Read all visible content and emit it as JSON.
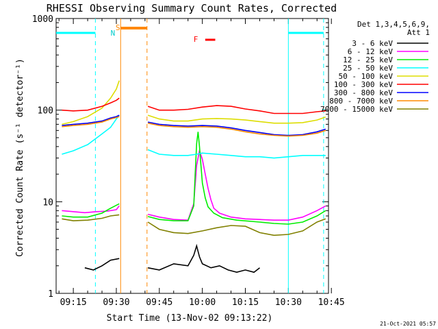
{
  "chart_data": {
    "type": "line",
    "title": "RHESSI Observing Summary Count Rates, Corrected",
    "xlabel": "Start Time (13-Nov-02 09:13:22)",
    "ylabel": "Corrected Count Rate (s⁻¹ detector⁻¹)",
    "yscale": "log",
    "ylim": [
      1,
      1000
    ],
    "xlim_minutes": [
      9.0,
      104.0
    ],
    "x_ticks": [
      "09:15",
      "09:30",
      "09:45",
      "10:00",
      "10:15",
      "10:30",
      "10:45"
    ],
    "x_tick_minutes": [
      15,
      30,
      45,
      60,
      75,
      90,
      105
    ],
    "y_ticks": [
      "1",
      "10",
      "100",
      "1000"
    ],
    "y_tick_values": [
      1,
      10,
      100,
      1000
    ],
    "legend_header": [
      "Det 1,3,4,5,6,9,",
      "Att 1"
    ],
    "series": [
      {
        "name": "3 - 6 keV",
        "color": "#000000",
        "points": [
          [
            19,
            1.9
          ],
          [
            22,
            1.8
          ],
          [
            25,
            2.0
          ],
          [
            28,
            2.3
          ],
          [
            31,
            2.4
          ],
          [
            41,
            1.9
          ],
          [
            45,
            1.8
          ],
          [
            50,
            2.1
          ],
          [
            55,
            2.0
          ],
          [
            57,
            2.6
          ],
          [
            58,
            3.3
          ],
          [
            59,
            2.5
          ],
          [
            60,
            2.1
          ],
          [
            63,
            1.9
          ],
          [
            66,
            2.0
          ],
          [
            69,
            1.8
          ],
          [
            72,
            1.7
          ],
          [
            75,
            1.8
          ],
          [
            78,
            1.7
          ],
          [
            80,
            1.9
          ]
        ]
      },
      {
        "name": "6 - 12 keV",
        "color": "#ff00ff",
        "points": [
          [
            11,
            8.0
          ],
          [
            15,
            7.8
          ],
          [
            19,
            7.6
          ],
          [
            23,
            7.8
          ],
          [
            27,
            7.9
          ],
          [
            30,
            8.2
          ],
          [
            31,
            9.0
          ],
          [
            41,
            7.3
          ],
          [
            45,
            6.8
          ],
          [
            50,
            6.4
          ],
          [
            55,
            6.3
          ],
          [
            57,
            9.5
          ],
          [
            58,
            25
          ],
          [
            59,
            36
          ],
          [
            60,
            29
          ],
          [
            61,
            20
          ],
          [
            62,
            14
          ],
          [
            63,
            10.5
          ],
          [
            64,
            8.5
          ],
          [
            66,
            7.5
          ],
          [
            70,
            6.8
          ],
          [
            75,
            6.5
          ],
          [
            80,
            6.4
          ],
          [
            85,
            6.3
          ],
          [
            90,
            6.3
          ],
          [
            95,
            6.8
          ],
          [
            100,
            8.0
          ],
          [
            103,
            9.0
          ]
        ]
      },
      {
        "name": "12 - 25 keV",
        "color": "#00ee00",
        "points": [
          [
            11,
            7.0
          ],
          [
            15,
            6.8
          ],
          [
            20,
            6.8
          ],
          [
            25,
            7.5
          ],
          [
            28,
            8.5
          ],
          [
            31,
            9.5
          ],
          [
            41,
            6.9
          ],
          [
            45,
            6.4
          ],
          [
            50,
            6.2
          ],
          [
            55,
            6.2
          ],
          [
            57,
            9.0
          ],
          [
            57.5,
            20
          ],
          [
            58,
            43
          ],
          [
            58.5,
            58
          ],
          [
            59,
            40
          ],
          [
            59.5,
            25
          ],
          [
            60,
            16
          ],
          [
            61,
            11
          ],
          [
            62,
            8.8
          ],
          [
            64,
            7.5
          ],
          [
            67,
            6.7
          ],
          [
            72,
            6.3
          ],
          [
            80,
            6.0
          ],
          [
            85,
            5.8
          ],
          [
            90,
            5.7
          ],
          [
            95,
            6.0
          ],
          [
            100,
            7.0
          ],
          [
            103,
            8.0
          ]
        ]
      },
      {
        "name": "25 - 50 keV",
        "color": "#00ffff",
        "points": [
          [
            11,
            33
          ],
          [
            15,
            36
          ],
          [
            20,
            42
          ],
          [
            25,
            55
          ],
          [
            28,
            65
          ],
          [
            30,
            80
          ],
          [
            31,
            88
          ],
          [
            41,
            37
          ],
          [
            45,
            33
          ],
          [
            50,
            32
          ],
          [
            55,
            32
          ],
          [
            58,
            33
          ],
          [
            60,
            34
          ],
          [
            65,
            33
          ],
          [
            70,
            32
          ],
          [
            75,
            31
          ],
          [
            80,
            31
          ],
          [
            85,
            30
          ],
          [
            90,
            31
          ],
          [
            95,
            32
          ],
          [
            100,
            32
          ],
          [
            103,
            32
          ]
        ]
      },
      {
        "name": "50 - 100 keV",
        "color": "#dddd00",
        "points": [
          [
            11,
            70
          ],
          [
            15,
            75
          ],
          [
            20,
            85
          ],
          [
            25,
            105
          ],
          [
            28,
            135
          ],
          [
            30,
            170
          ],
          [
            31,
            210
          ],
          [
            41,
            88
          ],
          [
            45,
            80
          ],
          [
            50,
            76
          ],
          [
            55,
            76
          ],
          [
            60,
            80
          ],
          [
            65,
            81
          ],
          [
            70,
            80
          ],
          [
            75,
            78
          ],
          [
            80,
            75
          ],
          [
            85,
            72
          ],
          [
            90,
            72
          ],
          [
            95,
            73
          ],
          [
            100,
            78
          ],
          [
            103,
            84
          ]
        ]
      },
      {
        "name": "100 - 300 keV",
        "color": "#ff0000",
        "points": [
          [
            11,
            100
          ],
          [
            15,
            98
          ],
          [
            20,
            100
          ],
          [
            25,
            110
          ],
          [
            28,
            120
          ],
          [
            30,
            128
          ],
          [
            31,
            135
          ],
          [
            41,
            110
          ],
          [
            45,
            100
          ],
          [
            50,
            100
          ],
          [
            55,
            102
          ],
          [
            60,
            108
          ],
          [
            65,
            112
          ],
          [
            70,
            110
          ],
          [
            75,
            103
          ],
          [
            80,
            98
          ],
          [
            85,
            92
          ],
          [
            90,
            92
          ],
          [
            95,
            92
          ],
          [
            100,
            96
          ],
          [
            103,
            98
          ]
        ]
      },
      {
        "name": "300 - 800 keV",
        "color": "#0000ff",
        "points": [
          [
            11,
            68
          ],
          [
            15,
            70
          ],
          [
            20,
            72
          ],
          [
            25,
            76
          ],
          [
            28,
            82
          ],
          [
            30,
            85
          ],
          [
            31,
            88
          ],
          [
            41,
            74
          ],
          [
            45,
            70
          ],
          [
            50,
            68
          ],
          [
            55,
            67
          ],
          [
            60,
            68
          ],
          [
            65,
            67
          ],
          [
            70,
            64
          ],
          [
            75,
            60
          ],
          [
            80,
            57
          ],
          [
            85,
            54
          ],
          [
            90,
            53
          ],
          [
            95,
            54
          ],
          [
            100,
            58
          ],
          [
            103,
            62
          ]
        ]
      },
      {
        "name": "800 - 7000 keV",
        "color": "#ff8800",
        "points": [
          [
            11,
            66
          ],
          [
            15,
            68
          ],
          [
            20,
            70
          ],
          [
            25,
            74
          ],
          [
            28,
            80
          ],
          [
            30,
            83
          ],
          [
            31,
            85
          ],
          [
            41,
            72
          ],
          [
            45,
            68
          ],
          [
            50,
            66
          ],
          [
            55,
            65
          ],
          [
            60,
            66
          ],
          [
            65,
            65
          ],
          [
            70,
            62
          ],
          [
            75,
            58
          ],
          [
            80,
            55
          ],
          [
            85,
            53
          ],
          [
            90,
            52
          ],
          [
            95,
            53
          ],
          [
            100,
            56
          ],
          [
            103,
            60
          ]
        ]
      },
      {
        "name": "7000 - 15000 keV",
        "color": "#808000",
        "points": [
          [
            11,
            6.5
          ],
          [
            15,
            6.2
          ],
          [
            20,
            6.3
          ],
          [
            25,
            6.6
          ],
          [
            28,
            7.0
          ],
          [
            31,
            7.2
          ],
          [
            41,
            6.0
          ],
          [
            45,
            5.0
          ],
          [
            50,
            4.6
          ],
          [
            55,
            4.5
          ],
          [
            60,
            4.8
          ],
          [
            65,
            5.2
          ],
          [
            70,
            5.5
          ],
          [
            75,
            5.4
          ],
          [
            80,
            4.6
          ],
          [
            85,
            4.3
          ],
          [
            90,
            4.4
          ],
          [
            95,
            4.8
          ],
          [
            100,
            6.0
          ],
          [
            103,
            6.5
          ]
        ]
      }
    ],
    "annotations": [
      {
        "label": "S",
        "color": "#ff8800",
        "x_minute": 31
      },
      {
        "label": "N",
        "color": "#00cccc",
        "x_minute": 30
      },
      {
        "label": "F",
        "color": "#ff0000",
        "x_minute": 57
      },
      {
        "label": "spacecraft night (cyan bars)",
        "color": "#00ffff",
        "x_minute_ranges": [
          [
            9.0,
            22.7
          ],
          [
            90.0,
            102.3
          ]
        ]
      },
      {
        "label": "attenuator/SAA interval (orange bar)",
        "color": "#ff8800",
        "x_minute_range": [
          31.5,
          40.7
        ]
      },
      {
        "label": "flare marker (red bar)",
        "color": "#ff0000",
        "x_minute_range": [
          61.0,
          64.5
        ]
      }
    ],
    "timestamp": "21-Oct-2021 05:57"
  }
}
